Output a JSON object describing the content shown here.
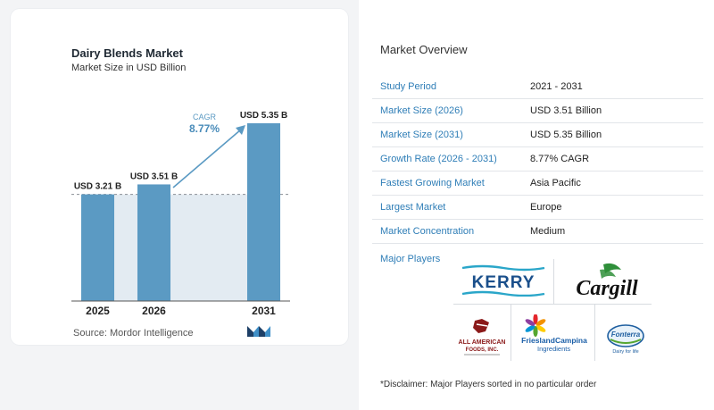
{
  "chart": {
    "title": "Dairy Blends Market",
    "subtitle": "Market Size in USD Billion",
    "source_label": "Source:",
    "source_name": "Mordor Intelligence",
    "cagr_label": "CAGR",
    "cagr_value": "8.77%",
    "colors": {
      "bar": "#5b9ac3",
      "bar_light": "#e3ebf2",
      "arrow": "#5b9ac3",
      "cagr_label": "#5b9ac3",
      "cagr_value": "#4a8cba",
      "axis": "#555555",
      "dashed": "#8a8f95"
    }
  },
  "chart_data": {
    "type": "bar",
    "categories": [
      "2025",
      "2026",
      "2031"
    ],
    "values": [
      3.21,
      3.51,
      5.35
    ],
    "data_labels": [
      "USD 3.21 B",
      "USD 3.51 B",
      "USD 5.35 B"
    ],
    "unit": "USD Billion",
    "ylim": [
      0,
      6
    ],
    "grid": false,
    "annotation": {
      "label": "CAGR",
      "value": "8.77%",
      "from": "2026",
      "to": "2031"
    }
  },
  "overview": {
    "title": "Market Overview",
    "rows": [
      {
        "key": "Study Period",
        "value": "2021 - 2031"
      },
      {
        "key": "Market Size (2026)",
        "value": "USD 3.51 Billion"
      },
      {
        "key": "Market Size (2031)",
        "value": "USD 5.35 Billion"
      },
      {
        "key": "Growth Rate (2026 - 2031)",
        "value": "8.77% CAGR"
      },
      {
        "key": "Fastest Growing Market",
        "value": "Asia Pacific"
      },
      {
        "key": "Largest Market",
        "value": "Europe"
      },
      {
        "key": "Market Concentration",
        "value": "Medium"
      }
    ]
  },
  "players": {
    "title": "Major Players",
    "logos": {
      "kerry": "KERRY",
      "cargill": "Cargill",
      "all_american_1": "ALL AMERICAN",
      "all_american_2": "FOODS, INC.",
      "friesland_1": "FrieslandCampina",
      "friesland_2": "Ingredients",
      "fonterra_1": "Fonterra",
      "fonterra_2": "Dairy for life"
    },
    "colors": {
      "kerry": "#1a4f8b",
      "kerry_wave": "#2aa6c9",
      "cargill": "#111111",
      "cargill_leaf": "#2f8f3a",
      "all_american": "#8b1a1a",
      "friesland": "#1b5fa8",
      "fonterra": "#1f5fa0"
    }
  },
  "disclaimer": "*Disclaimer: Major Players sorted in no particular order"
}
